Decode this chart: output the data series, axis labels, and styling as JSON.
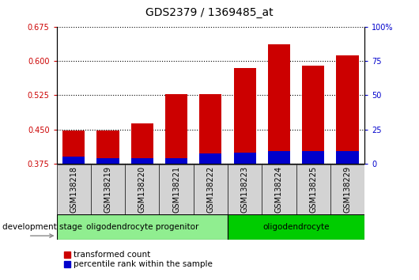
{
  "title": "GDS2379 / 1369485_at",
  "samples": [
    "GSM138218",
    "GSM138219",
    "GSM138220",
    "GSM138221",
    "GSM138222",
    "GSM138223",
    "GSM138224",
    "GSM138225",
    "GSM138229"
  ],
  "transformed_count": [
    0.448,
    0.447,
    0.463,
    0.528,
    0.528,
    0.585,
    0.636,
    0.59,
    0.612
  ],
  "percentile_rank": [
    0.39,
    0.388,
    0.388,
    0.388,
    0.398,
    0.4,
    0.402,
    0.402,
    0.403
  ],
  "bar_bottom": 0.375,
  "ylim": [
    0.375,
    0.675
  ],
  "y_ticks_left": [
    0.375,
    0.45,
    0.525,
    0.6,
    0.675
  ],
  "y_ticks_right": [
    0,
    25,
    50,
    75,
    100
  ],
  "right_ylim": [
    0,
    100
  ],
  "bar_color_red": "#cc0000",
  "bar_color_blue": "#0000cc",
  "bar_width": 0.65,
  "groups": [
    {
      "label": "oligodendrocyte progenitor",
      "n_samples": 5,
      "color": "#90ee90"
    },
    {
      "label": "oligodendrocyte",
      "n_samples": 4,
      "color": "#00cc00"
    }
  ],
  "legend_red_label": "transformed count",
  "legend_blue_label": "percentile rank within the sample",
  "dev_stage_label": "development stage",
  "background_color": "#ffffff",
  "plot_bg_color": "#ffffff",
  "grid_color": "#000000",
  "tick_label_color_left": "#cc0000",
  "tick_label_color_right": "#0000cc",
  "title_fontsize": 10,
  "tick_fontsize": 7,
  "label_fontsize": 7.5
}
